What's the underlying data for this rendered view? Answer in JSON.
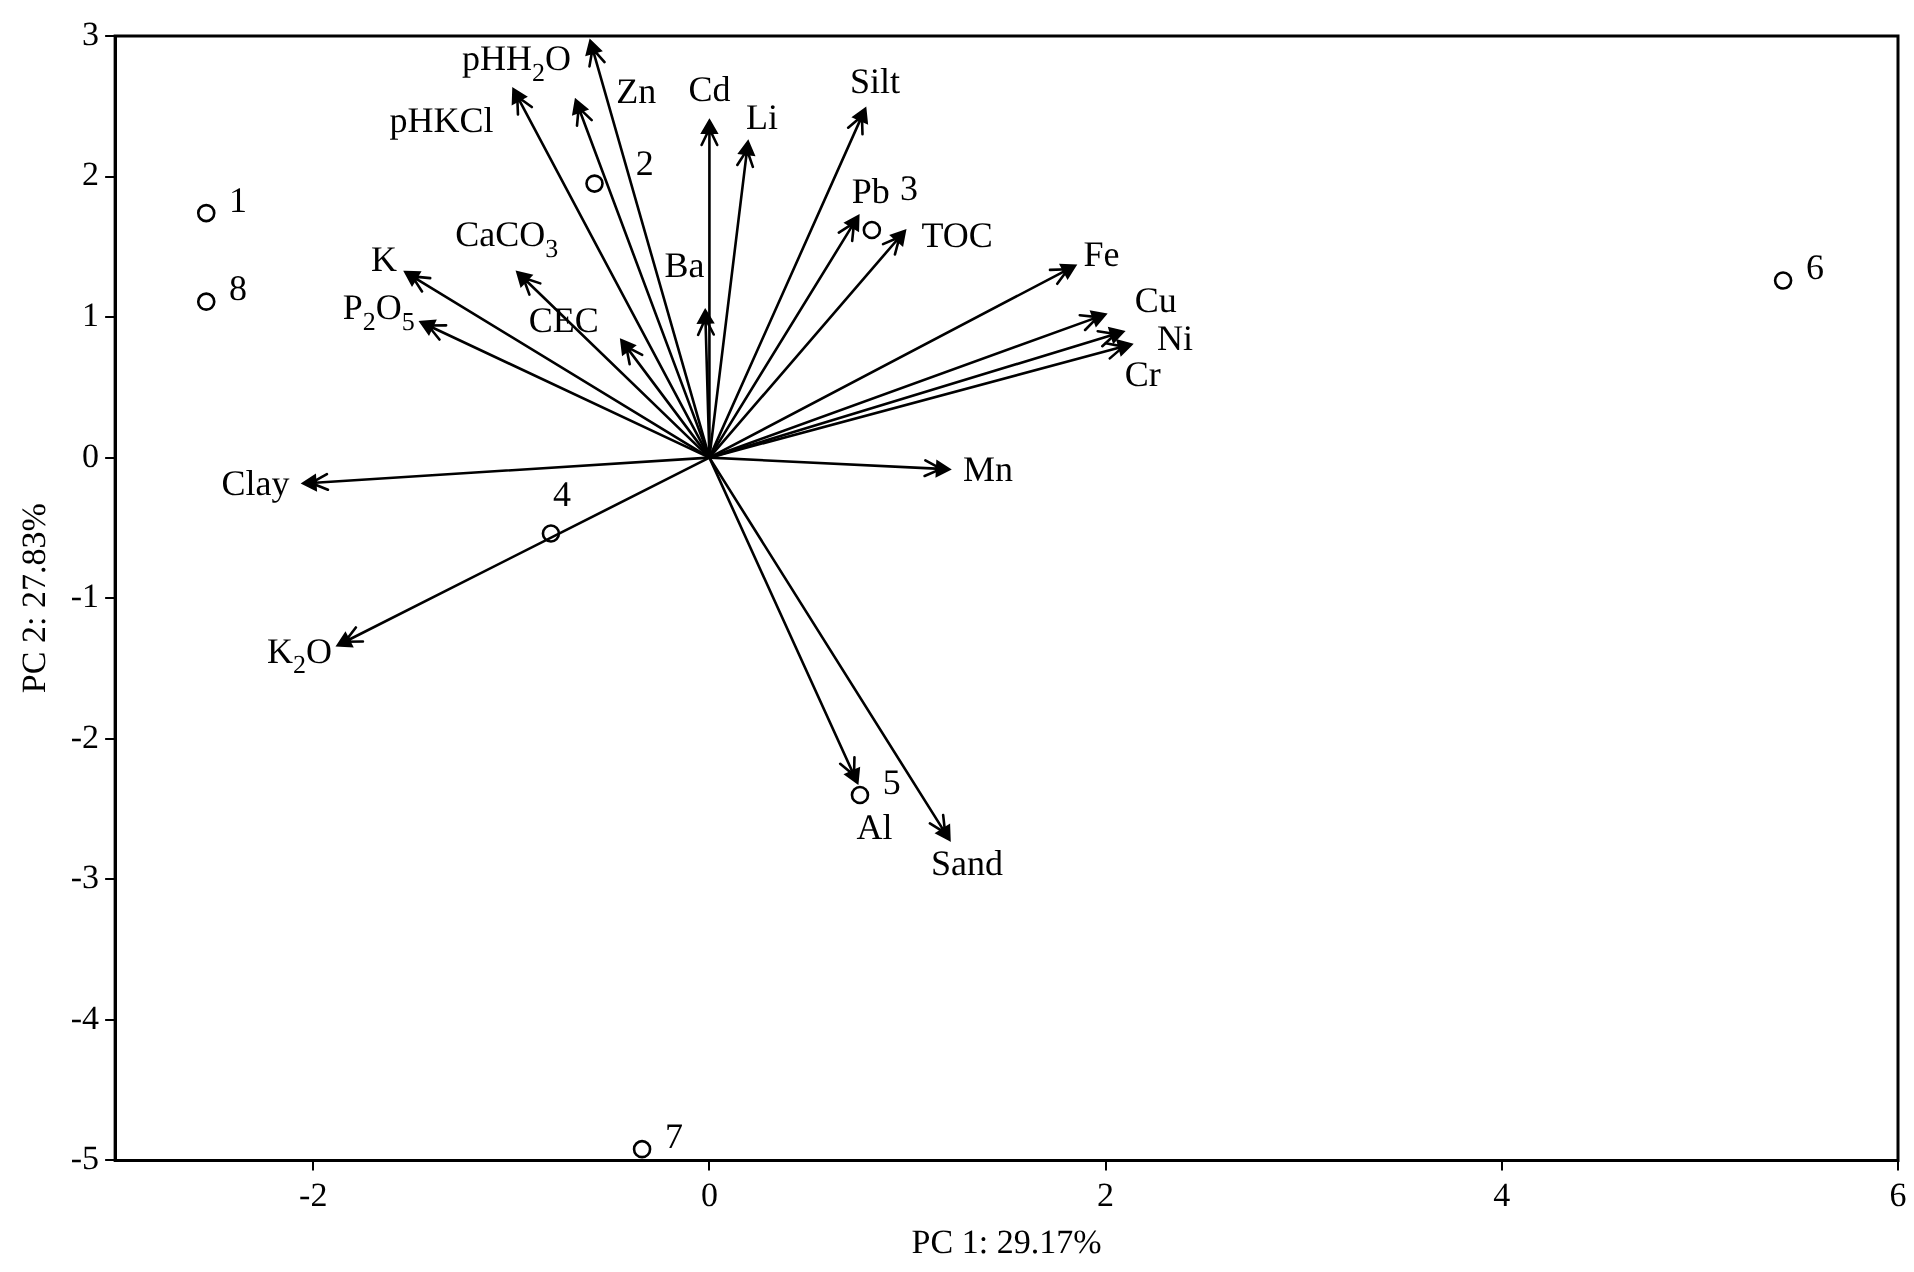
{
  "chart_data": {
    "type": "scatter",
    "xlabel": "PC 1: 29.17%",
    "ylabel": "PC 2: 27.83%",
    "xlim": [
      -3,
      6
    ],
    "ylim": [
      -5,
      3
    ],
    "xticks": [
      -2,
      0,
      2,
      4,
      6
    ],
    "yticks": [
      -5,
      -4,
      -3,
      -2,
      -1,
      0,
      1,
      2,
      3
    ],
    "grid": false,
    "legend": false,
    "series": [
      {
        "marker": "circle",
        "color": "#000000",
        "x": [
          -2.54,
          -0.58,
          0.82,
          -0.8,
          0.76,
          5.42,
          -0.34,
          -2.54
        ],
        "values": [
          1.74,
          1.95,
          1.62,
          -0.54,
          -2.4,
          1.26,
          -4.92,
          1.11
        ]
      },
      {
        "marker": "triangle",
        "color": "#000000",
        "x": [
          -1.5,
          -0.97,
          -0.66,
          -0.59,
          0.0,
          0.19,
          0.77,
          0.73,
          0.96,
          1.81,
          1.96,
          2.05,
          2.09,
          1.17,
          -0.02,
          -0.42,
          -0.94,
          -1.42,
          -2.01,
          -1.84,
          0.73,
          1.19
        ],
        "values": [
          1.29,
          2.57,
          2.49,
          2.91,
          2.34,
          2.19,
          2.43,
          1.67,
          1.57,
          1.34,
          1.0,
          0.88,
          0.79,
          -0.08,
          0.99,
          0.79,
          1.28,
          0.94,
          -0.18,
          -1.31,
          -2.26,
          -2.67
        ]
      }
    ],
    "annotations": [
      {
        "text": "K",
        "x": -1.5,
        "y": 1.29
      },
      {
        "text": "pHKCl",
        "x": -0.97,
        "y": 2.57
      },
      {
        "text": "Zn",
        "x": -0.66,
        "y": 2.49
      },
      {
        "text": "pHH$_{2}$O",
        "x": -0.59,
        "y": 2.91
      },
      {
        "text": "Cd",
        "x": 0.0,
        "y": 2.34
      },
      {
        "text": "Li",
        "x": 0.19,
        "y": 2.19
      },
      {
        "text": "Silt",
        "x": 0.77,
        "y": 2.43
      },
      {
        "text": "Pb",
        "x": 0.73,
        "y": 1.67
      },
      {
        "text": "TOC",
        "x": 0.96,
        "y": 1.57
      },
      {
        "text": "Fe",
        "x": 1.81,
        "y": 1.34
      },
      {
        "text": "Cu",
        "x": 1.96,
        "y": 1.0
      },
      {
        "text": "Ni",
        "x": 2.05,
        "y": 0.88
      },
      {
        "text": "Cr",
        "x": 2.09,
        "y": 0.79
      },
      {
        "text": "Mn",
        "x": 1.17,
        "y": -0.08
      },
      {
        "text": "Ba",
        "x": -0.02,
        "y": 0.99
      },
      {
        "text": "CEC",
        "x": -0.42,
        "y": 0.79
      },
      {
        "text": "CaCO$_{3}$",
        "x": -0.94,
        "y": 1.28
      },
      {
        "text": "P$_{2}$O$_{5}$",
        "x": -1.42,
        "y": 0.94
      },
      {
        "text": "Clay",
        "x": -2.01,
        "y": -0.18
      },
      {
        "text": "K$_{2}$O",
        "x": -1.84,
        "y": -1.31
      },
      {
        "text": "Al",
        "x": 0.73,
        "y": -2.26
      },
      {
        "text": "Sand",
        "x": 1.19,
        "y": -2.67
      },
      {
        "text": "1",
        "x": -2.54,
        "y": 1.74
      },
      {
        "text": "2",
        "x": -0.58,
        "y": 1.95
      },
      {
        "text": "3",
        "x": 0.82,
        "y": 1.62
      },
      {
        "text": "4",
        "x": -0.8,
        "y": -0.54
      },
      {
        "text": "5",
        "x": 0.76,
        "y": -2.4
      },
      {
        "text": "6",
        "x": 5.42,
        "y": 1.26
      },
      {
        "text": "7",
        "x": -0.34,
        "y": -4.92
      },
      {
        "text": "8",
        "x": -2.54,
        "y": 1.11
      }
    ]
  }
}
